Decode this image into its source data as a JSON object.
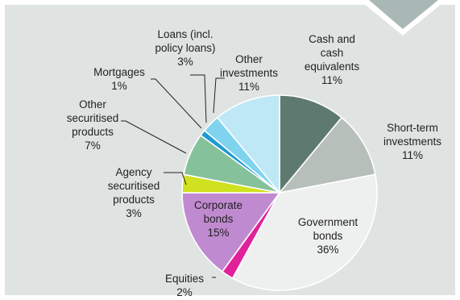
{
  "chart_data": {
    "type": "pie",
    "title": "",
    "slices": [
      {
        "label": "Cash and cash equivalents",
        "lines": [
          "Cash and",
          "cash",
          "equivalents"
        ],
        "pct_label": "11%",
        "value": 11,
        "color": "#5e7a70"
      },
      {
        "label": "Short-term investments",
        "lines": [
          "Short-term",
          "investments"
        ],
        "pct_label": "11%",
        "value": 11,
        "color": "#b7bfbb"
      },
      {
        "label": "Government bonds",
        "lines": [
          "Government",
          "bonds"
        ],
        "pct_label": "36%",
        "value": 36,
        "color": "#eef0ef"
      },
      {
        "label": "Equities",
        "lines": [
          "Equities"
        ],
        "pct_label": "2%",
        "value": 2,
        "color": "#e0219b"
      },
      {
        "label": "Corporate bonds",
        "lines": [
          "Corporate",
          "bonds"
        ],
        "pct_label": "15%",
        "value": 15,
        "color": "#c08ad0"
      },
      {
        "label": "Agency securitised products",
        "lines": [
          "Agency",
          "securitised",
          "products"
        ],
        "pct_label": "3%",
        "value": 3,
        "color": "#cfe11f"
      },
      {
        "label": "Other securitised products",
        "lines": [
          "Other",
          "securitised",
          "products"
        ],
        "pct_label": "7%",
        "value": 7,
        "color": "#85c19a"
      },
      {
        "label": "Mortgages",
        "lines": [
          "Mortgages"
        ],
        "pct_label": "1%",
        "value": 1,
        "color": "#1e9ad2"
      },
      {
        "label": "Loans (incl. policy loans)",
        "lines": [
          "Loans (incl.",
          "policy loans)"
        ],
        "pct_label": "3%",
        "value": 3,
        "color": "#7fd3ee"
      },
      {
        "label": "Other investments",
        "lines": [
          "Other",
          "investments"
        ],
        "pct_label": "11%",
        "value": 11,
        "color": "#bfe8f6"
      }
    ],
    "legend": "none",
    "start": "12 o'clock, clockwise"
  },
  "colors": {
    "panel_background": "#dfe3e1",
    "corner_marker": "#a9b7b5"
  }
}
